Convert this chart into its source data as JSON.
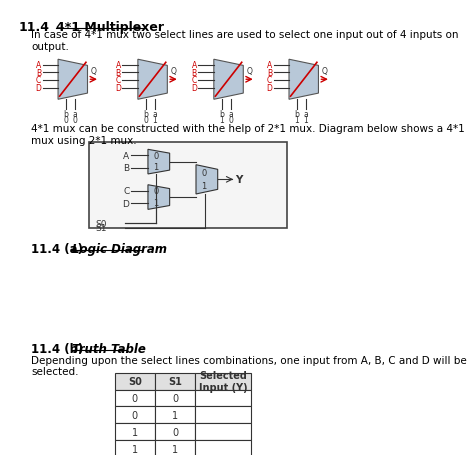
{
  "title_num": "11.4",
  "title_text": "4*1 Multiplexer",
  "paragraph1": "In case of 4*1 mux two select lines are used to select one input out of 4 inputs on\noutput.",
  "paragraph2": "4*1 mux can be constructed with the help of 2*1 mux. Diagram below shows a 4*1\nmux using 2*1 mux.",
  "label_11_4a_num": "11.4 (a)",
  "label_11_4a_txt": "Logic Diagram",
  "label_11_4b_num": "11.4 (b)",
  "label_truth_table": "Truth Table",
  "paragraph3": "Depending upon the select lines combinations, one input from A, B, C and D will be\nselected.",
  "table_headers": [
    "S0",
    "S1",
    "Selected\nInput (Y)"
  ],
  "table_rows": [
    [
      "0",
      "0",
      ""
    ],
    [
      "0",
      "1",
      ""
    ],
    [
      "1",
      "0",
      ""
    ],
    [
      "1",
      "1",
      ""
    ]
  ],
  "bg_color": "#ffffff",
  "text_color": "#000000",
  "mux_fill": "#b8c8d8",
  "mux_stroke": "#555555",
  "arrow_color": "#cc0000",
  "input_labels": [
    "A",
    "B",
    "C",
    "D"
  ],
  "mux_sel_pairs": [
    [
      "0",
      "0"
    ],
    [
      "0",
      "1"
    ],
    [
      "1",
      "0"
    ],
    [
      "1",
      "1"
    ]
  ]
}
